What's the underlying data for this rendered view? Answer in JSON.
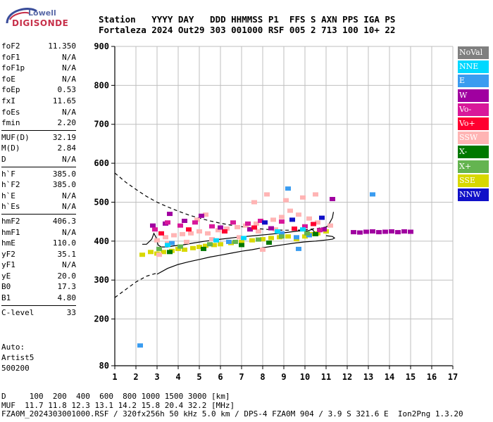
{
  "logo": {
    "line1": "Lowell",
    "line2": "DIGISONDE"
  },
  "header": {
    "line1": "Station   YYYY DAY   DDD HHMMSS P1  FFS S AXN PPS IGA PS",
    "line2": "Fortaleza 2024 Out29 303 001000 RSF 005 2 713 100 10+ 22"
  },
  "params": {
    "groups": [
      [
        {
          "name": "foF2",
          "value": "11.350"
        },
        {
          "name": "foF1",
          "value": "N/A"
        },
        {
          "name": "foF1p",
          "value": "N/A"
        },
        {
          "name": "foE",
          "value": "N/A"
        },
        {
          "name": "foEp",
          "value": "0.53"
        },
        {
          "name": "fxI",
          "value": "11.65"
        },
        {
          "name": "foEs",
          "value": "N/A"
        },
        {
          "name": "fmin",
          "value": "2.20"
        }
      ],
      [
        {
          "name": "MUF(D)",
          "value": "32.19"
        },
        {
          "name": "M(D)",
          "value": "2.84"
        },
        {
          "name": "D",
          "value": "N/A"
        }
      ],
      [
        {
          "name": "h`F",
          "value": "385.0"
        },
        {
          "name": "h`F2",
          "value": "385.0"
        },
        {
          "name": "h`E",
          "value": "N/A"
        },
        {
          "name": "h`Es",
          "value": "N/A"
        }
      ],
      [
        {
          "name": "hmF2",
          "value": "406.3"
        },
        {
          "name": "hmF1",
          "value": "N/A"
        },
        {
          "name": "hmE",
          "value": "110.0"
        },
        {
          "name": "yF2",
          "value": "35.1"
        },
        {
          "name": "yF1",
          "value": "N/A"
        },
        {
          "name": "yE",
          "value": "20.0"
        },
        {
          "name": "B0",
          "value": "17.3"
        },
        {
          "name": "B1",
          "value": "4.80"
        }
      ],
      [
        {
          "name": "C-level",
          "value": "33"
        }
      ]
    ]
  },
  "auto": {
    "line1": "Auto:",
    "line2": "Artist5",
    "line3": "500200"
  },
  "footer": {
    "line1": "D     100  200  400  600  800 1000 1500 3000 [km]",
    "line2": "MUF  11.7 11.8 12.3 13.1 14.2 15.8 20.4 32.2 [MHz]",
    "line3": "FZA0M_2024303001000.RSF / 320fx256h 50 kHz 5.0 km / DPS-4 FZA0M 904 / 3.9 S 321.6 E  Ion2Png 1.3.20"
  },
  "legend": [
    {
      "label": "NoVal",
      "color": "#7f7f7f"
    },
    {
      "label": "NNE",
      "color": "#00d8ff"
    },
    {
      "label": "E",
      "color": "#3a9cf0"
    },
    {
      "label": "W",
      "color": "#a000a0"
    },
    {
      "label": "Vo-",
      "color": "#d8189a"
    },
    {
      "label": "Vo+",
      "color": "#ff0030"
    },
    {
      "label": "SSW",
      "color": "#ffb4b4"
    },
    {
      "label": "X-",
      "color": "#007800"
    },
    {
      "label": "X+",
      "color": "#64b450"
    },
    {
      "label": "SSE",
      "color": "#d8d800"
    },
    {
      "label": "NNW",
      "color": "#1010c8"
    }
  ],
  "chart_data": {
    "type": "scatter",
    "xlim": [
      1,
      17
    ],
    "ylim": [
      80,
      900
    ],
    "xticks": [
      1,
      2,
      3,
      4,
      5,
      6,
      7,
      8,
      9,
      10,
      11,
      12,
      13,
      14,
      15,
      16,
      17
    ],
    "yticks": [
      80,
      200,
      300,
      400,
      500,
      600,
      700,
      800,
      900
    ],
    "grid": true,
    "legend_placement": "right",
    "series": [
      {
        "name": "SSE",
        "points": [
          [
            2.3,
            365
          ],
          [
            2.7,
            372
          ],
          [
            3.0,
            368
          ],
          [
            3.3,
            372
          ],
          [
            3.7,
            375
          ],
          [
            4.0,
            380
          ],
          [
            4.3,
            378
          ],
          [
            4.7,
            382
          ],
          [
            5.0,
            385
          ],
          [
            5.3,
            388
          ],
          [
            5.7,
            390
          ],
          [
            6.0,
            392
          ],
          [
            6.5,
            395
          ],
          [
            7.0,
            398
          ],
          [
            7.5,
            402
          ],
          [
            8.0,
            405
          ],
          [
            8.4,
            408
          ],
          [
            8.8,
            410
          ],
          [
            9.2,
            412
          ],
          [
            9.6,
            405
          ],
          [
            10.0,
            412
          ],
          [
            10.3,
            418
          ],
          [
            10.6,
            420
          ],
          [
            11.0,
            425
          ]
        ]
      },
      {
        "name": "SSW",
        "points": [
          [
            3.0,
            402
          ],
          [
            3.4,
            410
          ],
          [
            3.8,
            415
          ],
          [
            4.2,
            418
          ],
          [
            4.6,
            420
          ],
          [
            5.0,
            425
          ],
          [
            5.4,
            420
          ],
          [
            5.9,
            428
          ],
          [
            6.3,
            432
          ],
          [
            6.8,
            436
          ],
          [
            7.2,
            440
          ],
          [
            7.7,
            445
          ],
          [
            8.1,
            448
          ],
          [
            8.5,
            455
          ],
          [
            8.9,
            462
          ],
          [
            9.3,
            478
          ],
          [
            9.7,
            468
          ],
          [
            10.2,
            458
          ],
          [
            10.6,
            448
          ],
          [
            11.2,
            440
          ],
          [
            3.1,
            365
          ],
          [
            3.5,
            395
          ],
          [
            4.4,
            398
          ],
          [
            5.6,
            405
          ],
          [
            6.9,
            410
          ],
          [
            7.8,
            425
          ],
          [
            8.6,
            430
          ],
          [
            9.1,
            505
          ],
          [
            9.9,
            512
          ],
          [
            10.5,
            520
          ],
          [
            8.2,
            520
          ],
          [
            7.6,
            500
          ],
          [
            4.9,
            455
          ],
          [
            5.3,
            468
          ],
          [
            8.0,
            378
          ]
        ]
      },
      {
        "name": "W",
        "points": [
          [
            12.3,
            423
          ],
          [
            12.6,
            422
          ],
          [
            12.9,
            424
          ],
          [
            13.2,
            425
          ],
          [
            13.5,
            423
          ],
          [
            13.8,
            424
          ],
          [
            14.1,
            425
          ],
          [
            14.4,
            423
          ],
          [
            14.7,
            425
          ],
          [
            15.0,
            424
          ],
          [
            3.4,
            445
          ],
          [
            4.3,
            452
          ],
          [
            5.1,
            465
          ],
          [
            6.0,
            435
          ],
          [
            7.4,
            430
          ],
          [
            8.4,
            433
          ],
          [
            11.3,
            508
          ],
          [
            2.8,
            440
          ],
          [
            3.6,
            470
          ],
          [
            10.9,
            430
          ]
        ]
      },
      {
        "name": "Vo-",
        "points": [
          [
            2.9,
            430
          ],
          [
            3.5,
            448
          ],
          [
            4.1,
            440
          ],
          [
            4.8,
            448
          ],
          [
            5.6,
            438
          ],
          [
            6.6,
            448
          ],
          [
            7.3,
            445
          ],
          [
            7.9,
            452
          ],
          [
            8.9,
            450
          ],
          [
            10.0,
            438
          ],
          [
            10.7,
            428
          ]
        ]
      },
      {
        "name": "Vo+",
        "points": [
          [
            3.2,
            420
          ],
          [
            4.5,
            430
          ],
          [
            6.2,
            425
          ],
          [
            7.6,
            435
          ],
          [
            9.5,
            432
          ],
          [
            10.4,
            444
          ]
        ]
      },
      {
        "name": "E",
        "points": [
          [
            2.2,
            132
          ],
          [
            3.7,
            395
          ],
          [
            6.4,
            398
          ],
          [
            8.9,
            420
          ],
          [
            9.6,
            410
          ],
          [
            10.2,
            415
          ],
          [
            13.2,
            520
          ],
          [
            9.2,
            535
          ],
          [
            9.7,
            380
          ]
        ]
      },
      {
        "name": "NNE",
        "points": [
          [
            3.5,
            390
          ],
          [
            5.8,
            402
          ],
          [
            7.1,
            408
          ],
          [
            8.7,
            425
          ],
          [
            9.9,
            430
          ]
        ]
      },
      {
        "name": "X-",
        "points": [
          [
            3.6,
            372
          ],
          [
            5.2,
            380
          ],
          [
            7.0,
            390
          ],
          [
            8.3,
            396
          ],
          [
            10.5,
            418
          ]
        ]
      },
      {
        "name": "X+",
        "points": [
          [
            3.1,
            380
          ],
          [
            4.1,
            386
          ],
          [
            5.5,
            392
          ],
          [
            6.7,
            398
          ],
          [
            7.8,
            404
          ],
          [
            8.9,
            412
          ],
          [
            10.1,
            420
          ]
        ]
      },
      {
        "name": "NNW",
        "points": [
          [
            8.1,
            448
          ],
          [
            9.4,
            455
          ],
          [
            10.8,
            460
          ]
        ]
      }
    ],
    "profile_solid": {
      "x": [
        2.3,
        2.5,
        2.75,
        2.85,
        2.95,
        3.05,
        3.2,
        3.5,
        3.8,
        4.2,
        4.7,
        5.3,
        6.0,
        6.8,
        7.6,
        8.4,
        9.1,
        9.7,
        10.1,
        10.35,
        10.5,
        10.7,
        10.9,
        11.1,
        11.3,
        11.35
      ],
      "y": [
        392,
        392,
        405,
        420,
        410,
        390,
        385,
        385,
        388,
        390,
        395,
        400,
        405,
        410,
        414,
        418,
        422,
        426,
        426,
        430,
        420,
        425,
        432,
        440,
        460,
        475
      ]
    },
    "trace_lower": {
      "x": [
        3.0,
        3.5,
        4.0,
        4.5,
        5.0,
        5.5,
        6.0,
        6.5,
        7.0,
        7.5,
        8.0,
        8.5,
        9.0,
        9.5,
        10.0,
        10.5,
        11.0,
        11.3,
        11.4,
        11.3,
        11.0
      ],
      "y": [
        315,
        330,
        340,
        347,
        353,
        359,
        364,
        369,
        374,
        378,
        383,
        387,
        391,
        395,
        398,
        400,
        403,
        405,
        408,
        412,
        414
      ]
    },
    "trace_dashed_low": {
      "x": [
        1.0,
        1.5,
        2.0,
        2.5,
        3.0
      ],
      "y": [
        255,
        275,
        295,
        310,
        318
      ]
    },
    "trace_dashed_high": {
      "x": [
        1.0,
        1.5,
        2.0,
        2.5,
        3.0,
        3.5,
        4.0,
        4.5,
        5.0,
        5.5,
        6.0,
        6.5,
        7.0,
        7.5,
        8.0,
        8.5,
        9.0,
        9.5,
        10.0,
        10.5,
        11.0
      ],
      "y": [
        575,
        552,
        533,
        515,
        500,
        488,
        477,
        467,
        459,
        452,
        446,
        441,
        437,
        434,
        431,
        429,
        428,
        428,
        429,
        432,
        436
      ]
    }
  }
}
